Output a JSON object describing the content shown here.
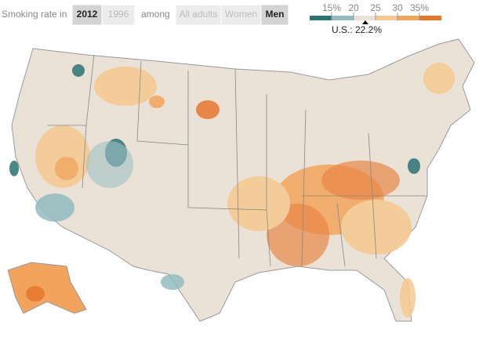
{
  "controls": {
    "label": "Smoking rate in",
    "years": [
      {
        "label": "2012",
        "selected": true
      },
      {
        "label": "1996",
        "selected": false
      }
    ],
    "among": "among",
    "groups": [
      {
        "label": "All adults",
        "selected": false
      },
      {
        "label": "Women",
        "selected": false
      },
      {
        "label": "Men",
        "selected": true
      }
    ]
  },
  "legend": {
    "colors": [
      "#2b7374",
      "#93bcc0",
      "#ebe2d7",
      "#f5c98f",
      "#f2a45c",
      "#e8772e"
    ],
    "labels": [
      "15%",
      "20",
      "25",
      "30",
      "35%"
    ],
    "note": "U.S.: 22.2%"
  }
}
